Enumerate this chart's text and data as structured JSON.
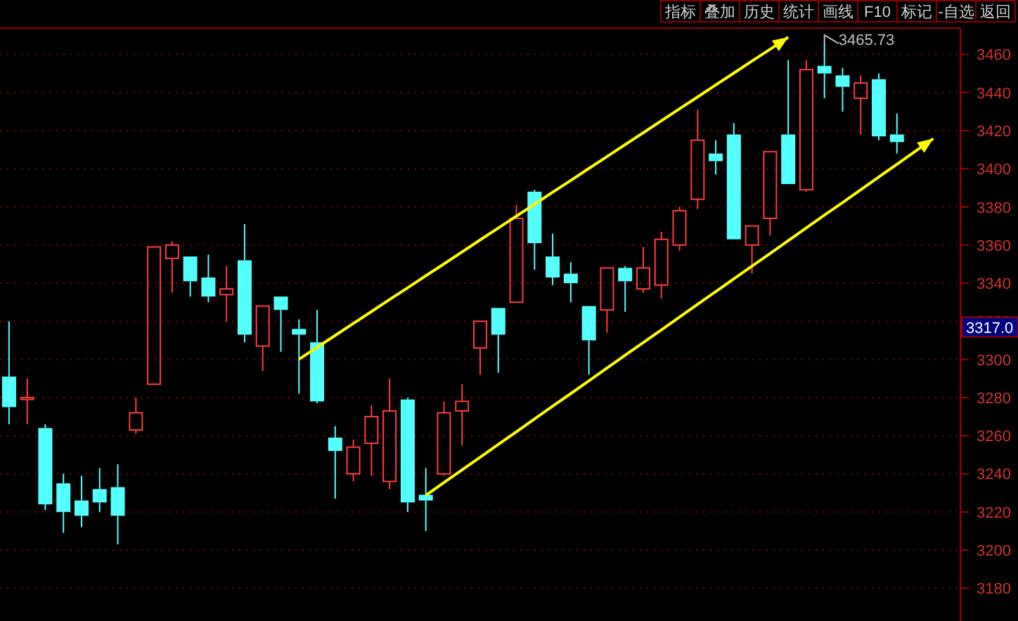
{
  "chart_data": {
    "type": "candlestick",
    "categories": [
      null,
      null,
      null,
      null,
      null,
      null,
      null,
      null,
      null,
      null,
      null,
      null,
      null,
      null,
      null,
      null,
      null,
      null,
      null,
      null,
      null,
      null,
      null,
      null,
      null,
      null,
      null,
      null,
      null,
      null,
      null,
      null,
      null,
      null,
      null,
      null,
      null,
      null,
      null,
      null,
      null,
      null,
      null,
      null,
      null,
      null,
      null,
      null,
      null,
      null,
      null,
      null,
      null
    ],
    "ohlc": [
      [
        3291,
        3320,
        3266,
        3275
      ],
      [
        3279,
        3290,
        3266,
        3280
      ],
      [
        3264,
        3266,
        3221,
        3224
      ],
      [
        3235,
        3240,
        3209,
        3220
      ],
      [
        3226,
        3239,
        3212,
        3218
      ],
      [
        3232,
        3243,
        3220,
        3225
      ],
      [
        3233,
        3245,
        3203,
        3218
      ],
      [
        3263,
        3280,
        3261,
        3272
      ],
      [
        3287,
        3359,
        3287,
        3359
      ],
      [
        3353,
        3362,
        3335,
        3360
      ],
      [
        3354,
        3354,
        3333,
        3341
      ],
      [
        3343,
        3355,
        3330,
        3333
      ],
      [
        3334,
        3349,
        3320,
        3337
      ],
      [
        3352,
        3371,
        3309,
        3313
      ],
      [
        3307,
        3328,
        3294,
        3328
      ],
      [
        3333,
        3333,
        3304,
        3326
      ],
      [
        3316,
        3321,
        3282,
        3313
      ],
      [
        3309,
        3326,
        3277,
        3278
      ],
      [
        3259,
        3265,
        3227,
        3252
      ],
      [
        3240,
        3258,
        3236,
        3254
      ],
      [
        3256,
        3276,
        3239,
        3270
      ],
      [
        3236,
        3290,
        3232,
        3273
      ],
      [
        3279,
        3280,
        3220,
        3225
      ],
      [
        3229,
        3243,
        3210,
        3226
      ],
      [
        3240,
        3278,
        3239,
        3272
      ],
      [
        3273,
        3287,
        3255,
        3278
      ],
      [
        3306,
        3320,
        3292,
        3320
      ],
      [
        3327,
        3327,
        3293,
        3313
      ],
      [
        3330,
        3381,
        3330,
        3374
      ],
      [
        3388,
        3389,
        3347,
        3361
      ],
      [
        3354,
        3366,
        3339,
        3343
      ],
      [
        3345,
        3351,
        3330,
        3340
      ],
      [
        3328,
        3328,
        3292,
        3310
      ],
      [
        3326,
        3348,
        3314,
        3348
      ],
      [
        3348,
        3349,
        3325,
        3341
      ],
      [
        3337,
        3359,
        3335,
        3348
      ],
      [
        3339,
        3367,
        3332,
        3363
      ],
      [
        3360,
        3380,
        3357,
        3378
      ],
      [
        3384,
        3431,
        3379,
        3415
      ],
      [
        3408,
        3415,
        3397,
        3404
      ],
      [
        3418,
        3424,
        3363,
        3363
      ],
      [
        3360,
        3370,
        3345,
        3370
      ],
      [
        3374,
        3409,
        3365,
        3409
      ],
      [
        3418,
        3457,
        3392,
        3392
      ],
      [
        3389,
        3457,
        3388,
        3452
      ],
      [
        3454,
        3465.73,
        3437,
        3450
      ],
      [
        3449,
        3453,
        3430,
        3443
      ],
      [
        3437,
        3449,
        3418,
        3445
      ],
      [
        3447,
        3450,
        3415,
        3417
      ],
      [
        3418,
        3429,
        3408,
        3414
      ],
      null,
      null,
      null
    ],
    "series": [
      {
        "type": "line",
        "color": "#ffff00",
        "values": [
          null,
          null,
          null,
          null,
          null,
          null,
          null,
          null,
          null,
          null,
          null,
          null,
          null,
          null,
          null,
          null,
          3300.1,
          3306.4,
          3312.6,
          3318.9,
          3325.1,
          3331.4,
          3337.6,
          3343.9,
          3350.1,
          3356.4,
          3362.7,
          3368.9,
          3375.2,
          3381.4,
          3387.7,
          3393.9,
          3400.2,
          3406.4,
          3412.7,
          3418.9,
          3425.2,
          3431.5,
          3437.7,
          3444.0,
          3450.2,
          3456.5,
          3462.7,
          3469.0,
          null,
          null,
          null,
          null,
          null,
          null,
          null,
          null,
          null
        ]
      },
      {
        "type": "line",
        "color": "#ffff00",
        "values": [
          null,
          null,
          null,
          null,
          null,
          null,
          null,
          null,
          null,
          null,
          null,
          null,
          null,
          null,
          null,
          null,
          null,
          null,
          null,
          null,
          null,
          null,
          null,
          3228.7,
          3235.4,
          3242.1,
          3248.7,
          3255.4,
          3262.1,
          3268.8,
          3275.5,
          3282.1,
          3288.8,
          3295.5,
          3302.2,
          3308.9,
          3315.5,
          3322.2,
          3328.9,
          3335.6,
          3342.3,
          3348.9,
          3355.6,
          3362.3,
          3369.0,
          3375.7,
          3382.3,
          3389.0,
          3395.7,
          3402.4,
          3409.1,
          3415.8,
          null
        ]
      }
    ],
    "ylim": [
      3162.8,
      3473.8
    ],
    "yticks": [
      3180,
      3200,
      3220,
      3240,
      3260,
      3280,
      3300,
      3320,
      3340,
      3360,
      3380,
      3400,
      3420,
      3440,
      3460
    ],
    "grid": "y",
    "tick_labels": "y",
    "annotations": [
      "3465.73",
      "指标",
      "叠加",
      "历史",
      "统计",
      "画线",
      "F10",
      "标记",
      "-自选",
      "返回",
      {
        "text": "3317.0",
        "y": 3317.0
      }
    ]
  }
}
